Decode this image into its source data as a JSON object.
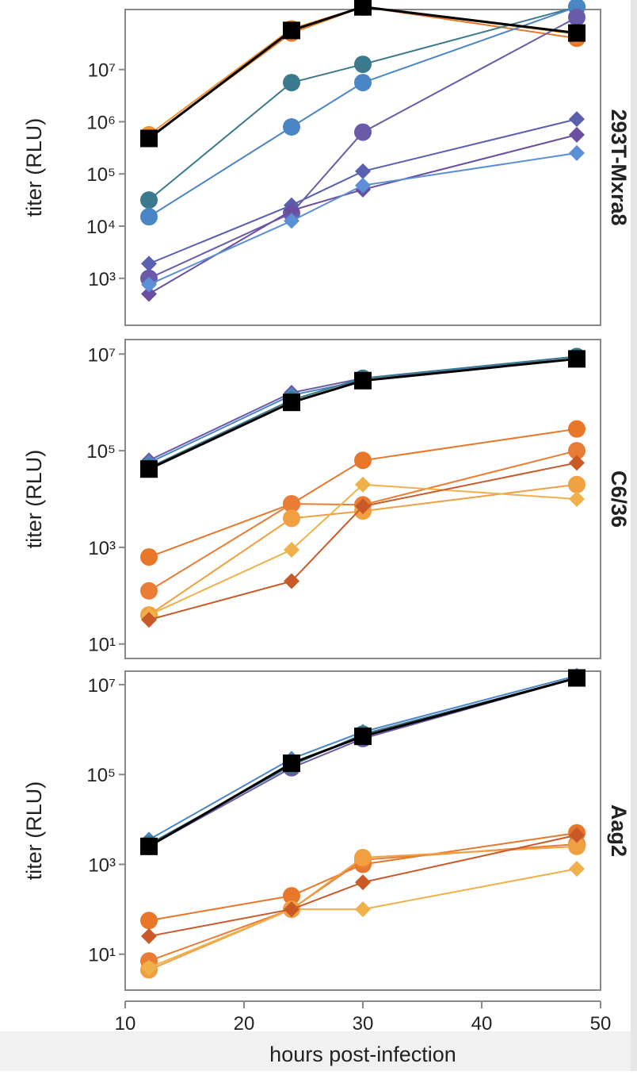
{
  "chart_data": {
    "type": "line",
    "xlabel": "hours post-infection",
    "xlim": [
      10,
      50
    ],
    "x_ticks": [
      10,
      20,
      30,
      40,
      50
    ],
    "x_tick_labels": [
      "10",
      "20",
      "30",
      "40",
      "50"
    ],
    "x": [
      12,
      24,
      30,
      48
    ],
    "y_scale": "log10",
    "panels": [
      {
        "facet": "293T-Mxra8",
        "ylabel": "titer (RLU)",
        "ylim_log10": [
          2.1,
          8.15
        ],
        "y_ticks_log10": [
          3,
          4,
          5,
          6,
          7
        ],
        "y_tick_labels": [
          "10³",
          "10⁴",
          "10⁵",
          "10⁶",
          "10⁷"
        ],
        "series": [
          {
            "name": "orange-a",
            "color": "#e8772a",
            "marker": "circle",
            "log10": [
              5.7,
              7.7,
              8.2,
              7.6
            ]
          },
          {
            "name": "orange-b",
            "color": "#f0932d",
            "marker": "circle",
            "log10": [
              5.75,
              7.78,
              8.2,
              7.68
            ]
          },
          {
            "name": "teal",
            "color": "#3b7a8c",
            "marker": "circle",
            "log10": [
              4.5,
              6.75,
              7.1,
              8.2
            ]
          },
          {
            "name": "blue",
            "color": "#4a86c5",
            "marker": "circle",
            "log10": [
              4.18,
              5.9,
              6.75,
              8.2
            ]
          },
          {
            "name": "purple-circle",
            "color": "#6a5ba8",
            "marker": "circle",
            "log10": [
              3.0,
              4.25,
              5.8,
              8.0
            ]
          },
          {
            "name": "indigo-diamond",
            "color": "#5a5fb0",
            "marker": "diamond",
            "log10": [
              3.28,
              4.4,
              5.05,
              6.05
            ]
          },
          {
            "name": "violet-diamond",
            "color": "#6a4fa0",
            "marker": "diamond",
            "log10": [
              2.7,
              4.3,
              4.7,
              5.75
            ]
          },
          {
            "name": "lightblue-diamond",
            "color": "#5b8fd6",
            "marker": "diamond",
            "log10": [
              2.88,
              4.1,
              4.78,
              5.4
            ]
          },
          {
            "name": "control",
            "color": "#000000",
            "marker": "square",
            "log10": [
              5.68,
              7.75,
              8.2,
              7.7
            ]
          }
        ]
      },
      {
        "facet": "C6/36",
        "ylabel": "titer (RLU)",
        "ylim_log10": [
          0.7,
          7.3
        ],
        "y_ticks_log10": [
          1,
          3,
          5,
          7
        ],
        "y_tick_labels": [
          "10¹",
          "10³",
          "10⁵",
          "10⁷"
        ],
        "series": [
          {
            "name": "purple",
            "color": "#6a5ba8",
            "marker": "diamond",
            "log10": [
              4.8,
              6.2,
              6.5,
              6.9
            ]
          },
          {
            "name": "blue",
            "color": "#4a86c5",
            "marker": "diamond",
            "log10": [
              4.75,
              6.15,
              6.45,
              6.95
            ]
          },
          {
            "name": "teal",
            "color": "#3b7a8c",
            "marker": "circle",
            "log10": [
              4.65,
              6.05,
              6.5,
              6.95
            ]
          },
          {
            "name": "orange-1",
            "color": "#e8772a",
            "marker": "circle",
            "log10": [
              2.8,
              3.9,
              4.8,
              5.45
            ]
          },
          {
            "name": "orange-2",
            "color": "#ea7d36",
            "marker": "circle",
            "log10": [
              2.1,
              3.9,
              3.88,
              5.0
            ]
          },
          {
            "name": "orange-3",
            "color": "#f0a040",
            "marker": "circle",
            "log10": [
              1.6,
              3.6,
              3.75,
              4.3
            ]
          },
          {
            "name": "orange-4",
            "color": "#f0b04a",
            "marker": "diamond",
            "log10": [
              1.6,
              2.95,
              4.3,
              4.0
            ]
          },
          {
            "name": "dark-orange",
            "color": "#c95a28",
            "marker": "diamond",
            "log10": [
              1.5,
              2.3,
              3.85,
              4.75
            ]
          },
          {
            "name": "control",
            "color": "#000000",
            "marker": "square",
            "log10": [
              4.62,
              6.0,
              6.45,
              6.9
            ]
          }
        ]
      },
      {
        "facet": "Aag2",
        "ylabel": "titer (RLU)",
        "ylim_log10": [
          0.2,
          7.3
        ],
        "y_ticks_log10": [
          1,
          3,
          5,
          7
        ],
        "y_tick_labels": [
          "10¹",
          "10³",
          "10⁵",
          "10⁷"
        ],
        "series": [
          {
            "name": "purple",
            "color": "#6a5ba8",
            "marker": "circle",
            "log10": [
              3.4,
              5.15,
              5.8,
              7.15
            ]
          },
          {
            "name": "blue",
            "color": "#4a86c5",
            "marker": "diamond",
            "log10": [
              3.55,
              5.35,
              5.95,
              7.2
            ]
          },
          {
            "name": "teal",
            "color": "#3b7a8c",
            "marker": "circle",
            "log10": [
              3.45,
              5.2,
              5.9,
              7.15
            ]
          },
          {
            "name": "orange-1",
            "color": "#e8772a",
            "marker": "circle",
            "log10": [
              1.75,
              2.3,
              3.0,
              3.7
            ]
          },
          {
            "name": "orange-2",
            "color": "#ea7d36",
            "marker": "circle",
            "log10": [
              0.85,
              2.0,
              3.1,
              3.45
            ]
          },
          {
            "name": "orange-3",
            "color": "#f0a040",
            "marker": "circle",
            "log10": [
              0.65,
              2.0,
              3.15,
              3.4
            ]
          },
          {
            "name": "orange-4",
            "color": "#f0b04a",
            "marker": "diamond",
            "log10": [
              0.7,
              2.0,
              2.0,
              2.9
            ]
          },
          {
            "name": "dark-orange",
            "color": "#c95a28",
            "marker": "diamond",
            "log10": [
              1.4,
              2.0,
              2.6,
              3.65
            ]
          },
          {
            "name": "control",
            "color": "#000000",
            "marker": "square",
            "log10": [
              3.4,
              5.25,
              5.85,
              7.15
            ]
          }
        ]
      }
    ]
  }
}
